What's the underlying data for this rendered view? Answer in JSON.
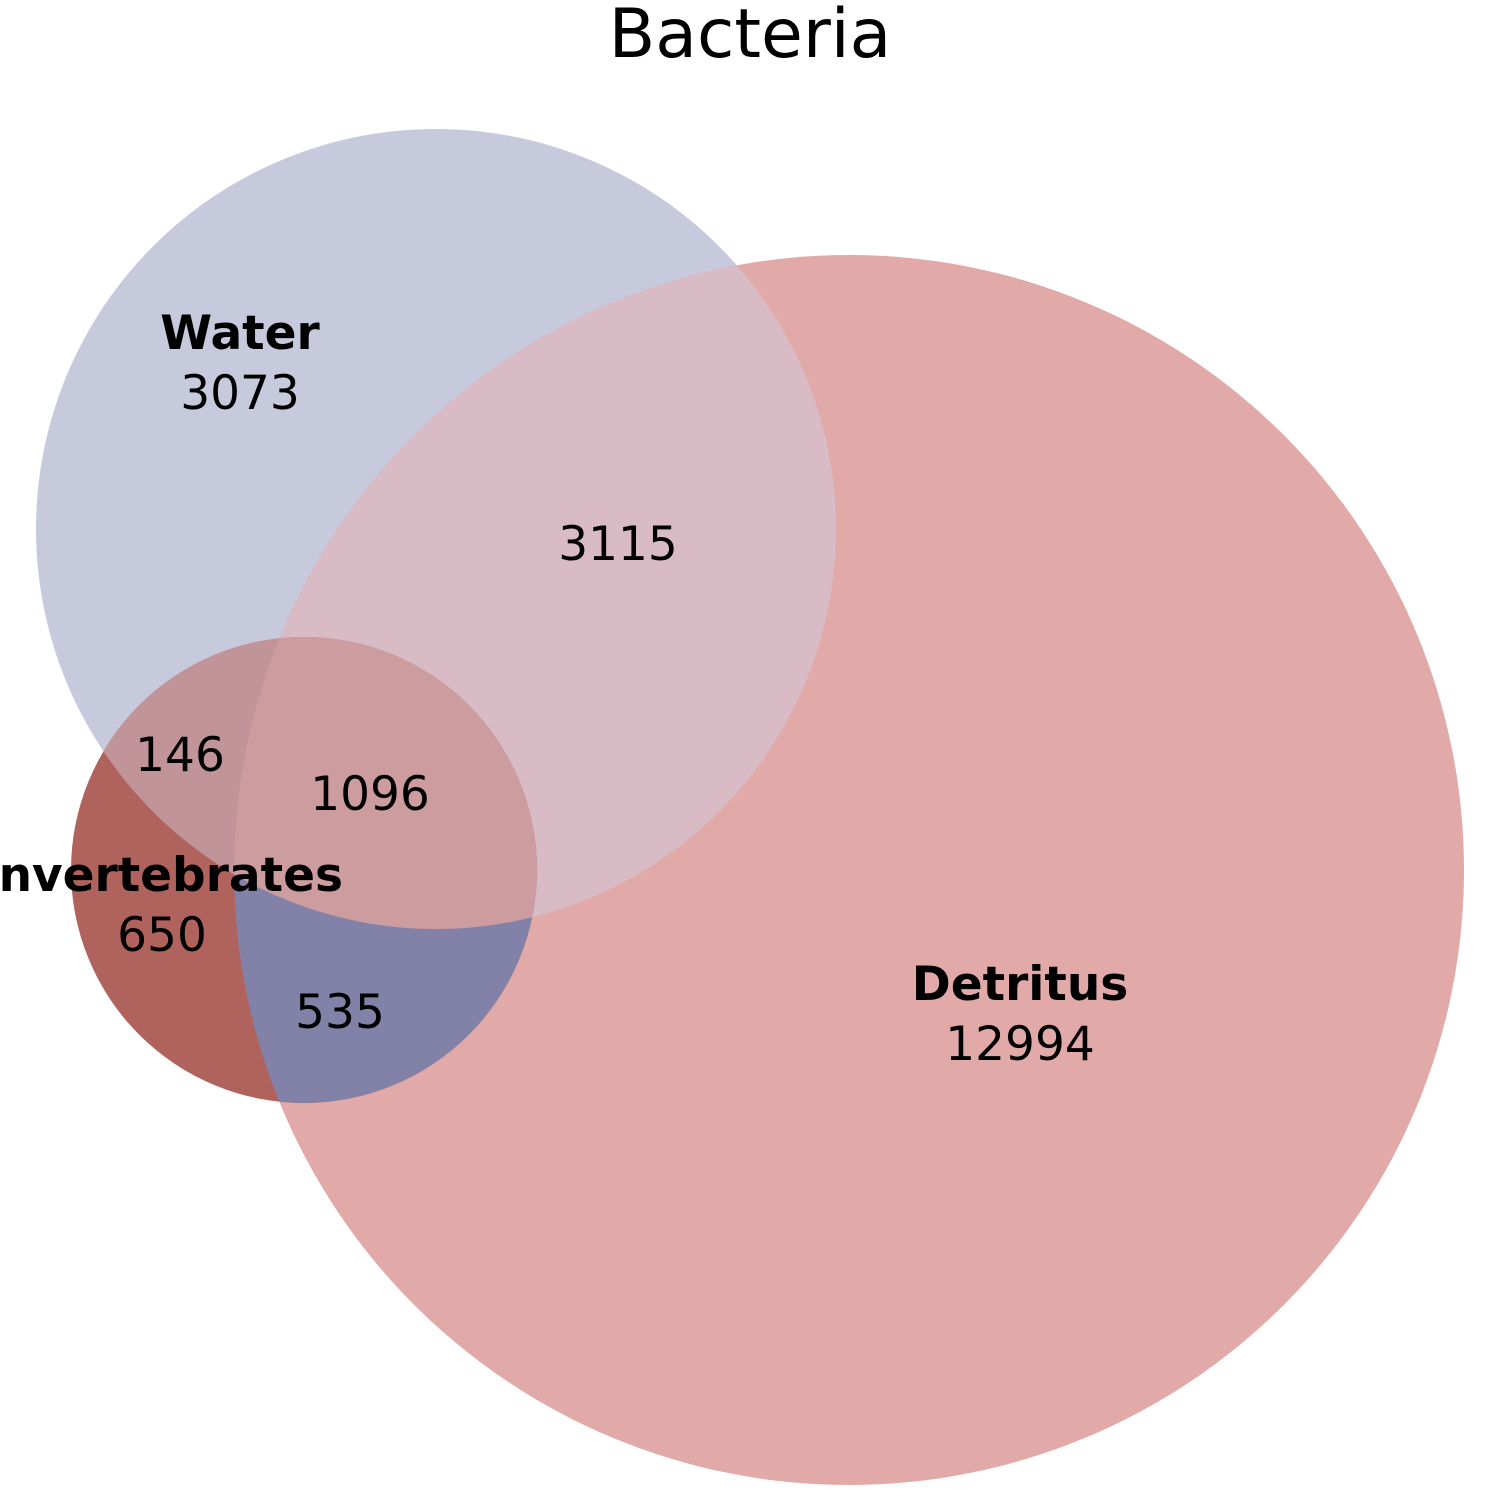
{
  "title": "Bacteria",
  "sets": {
    "water": {
      "name": "Water",
      "only_count": "3073",
      "color": "#c7c9dd"
    },
    "detritus": {
      "name": "Detritus",
      "only_count": "12994",
      "color": "#e1aaa8"
    },
    "invertebrates": {
      "name": "Invertebrates",
      "only_count": "650",
      "color": "#b0625c"
    }
  },
  "intersections": {
    "water_detritus": "3115",
    "water_invertebrates": "146",
    "all_three": "1096",
    "detritus_invertebrates": "535"
  },
  "colors": {
    "water_detritus": "#d8bbc4",
    "water_invertebrates": "#c19499",
    "all_three": "#cc9c9f",
    "detritus_invertebrates": "#8282a8"
  }
}
